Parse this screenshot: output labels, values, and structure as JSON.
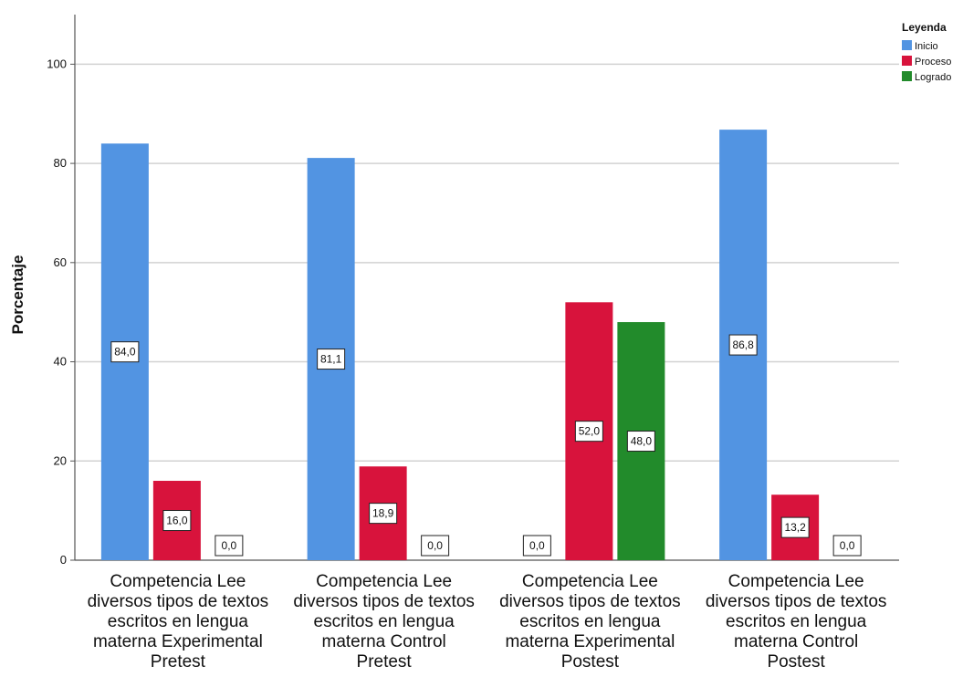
{
  "chart_data": {
    "type": "bar",
    "title": "",
    "xlabel": "",
    "ylabel": "Porcentaje",
    "ylim": [
      0,
      110
    ],
    "yticks": [
      0,
      20,
      40,
      60,
      80,
      100
    ],
    "grid": true,
    "legend": {
      "title": "Leyenda",
      "placement": "top-right"
    },
    "categories": [
      [
        "Competencia Lee",
        "diversos tipos de textos",
        "escritos en lengua",
        "materna Experimental",
        "Pretest"
      ],
      [
        "Competencia Lee",
        "diversos tipos de textos",
        "escritos en lengua",
        "materna Control",
        "Pretest"
      ],
      [
        "Competencia Lee",
        "diversos tipos de textos",
        "escritos en lengua",
        "materna Experimental",
        "Postest"
      ],
      [
        "Competencia Lee",
        "diversos tipos de textos",
        "escritos en lengua",
        "materna Control",
        "Postest"
      ]
    ],
    "series": [
      {
        "name": "Inicio",
        "color": "#5294e2",
        "values": [
          84.0,
          81.1,
          0.0,
          86.8
        ],
        "labels": [
          "84,0",
          "81,1",
          "",
          "86,8"
        ]
      },
      {
        "name": "Proceso",
        "color": "#d8133c",
        "values": [
          16.0,
          18.9,
          52.0,
          13.2
        ],
        "labels": [
          "16,0",
          "18,9",
          "52,0",
          "13,2"
        ]
      },
      {
        "name": "Logrado",
        "color": "#228b2b",
        "values": [
          0.0,
          0.0,
          48.0,
          0.0
        ],
        "labels": [
          "0,0",
          "0,0",
          "48,0",
          "0,0"
        ]
      }
    ],
    "zero_labels": [
      {
        "category": 2,
        "series": 0,
        "label": "0,0"
      }
    ]
  }
}
